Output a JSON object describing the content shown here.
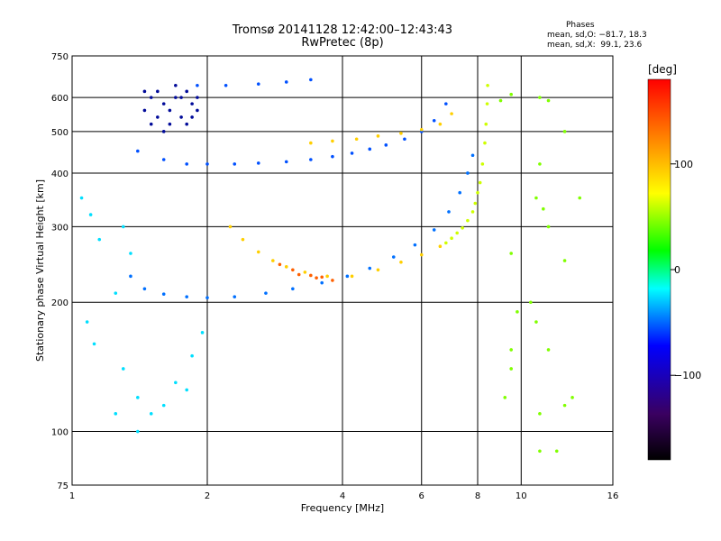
{
  "title": "Tromsø 20141128 12:42:00–12:43:43",
  "subtitle": "RwPretec (8p)",
  "stats": {
    "heading": "Phases",
    "o_line": "mean, sd,O: −81.7, 18.3",
    "x_line": "mean, sd,X:  99.1, 23.6"
  },
  "chart_data": {
    "type": "scatter",
    "xlabel": "Frequency [MHz]",
    "ylabel": "Stationary phase Virtual Height [km]",
    "xscale": "log",
    "yscale": "log",
    "xlim": [
      1,
      16
    ],
    "ylim": [
      75,
      750
    ],
    "x_ticks": [
      1,
      2,
      4,
      6,
      8,
      10,
      16
    ],
    "y_ticks": [
      75,
      100,
      200,
      300,
      400,
      500,
      600,
      750
    ],
    "colorbar": {
      "label": "[deg]",
      "range": [
        -180,
        180
      ],
      "ticks": [
        100,
        0,
        -100
      ]
    },
    "series": [
      {
        "points": [
          [
            1.45,
            560
          ],
          [
            1.5,
            600
          ],
          [
            1.55,
            620
          ],
          [
            1.6,
            580
          ],
          [
            1.65,
            560
          ],
          [
            1.7,
            600
          ],
          [
            1.75,
            540
          ],
          [
            1.8,
            520
          ],
          [
            1.85,
            580
          ],
          [
            1.9,
            560
          ],
          [
            1.5,
            520
          ],
          [
            1.6,
            500
          ],
          [
            1.7,
            640
          ],
          [
            1.8,
            620
          ],
          [
            1.55,
            540
          ],
          [
            1.65,
            520
          ],
          [
            1.75,
            600
          ],
          [
            1.85,
            540
          ],
          [
            1.45,
            620
          ],
          [
            1.9,
            600
          ]
        ],
        "phase": -135
      },
      {
        "points": [
          [
            1.4,
            450
          ],
          [
            1.6,
            430
          ],
          [
            1.8,
            420
          ],
          [
            2.0,
            420
          ],
          [
            2.3,
            420
          ],
          [
            2.6,
            422
          ],
          [
            3.0,
            425
          ],
          [
            3.4,
            430
          ],
          [
            3.8,
            437
          ],
          [
            4.2,
            445
          ],
          [
            4.6,
            455
          ],
          [
            5.0,
            465
          ],
          [
            5.5,
            480
          ],
          [
            6.0,
            500
          ],
          [
            6.4,
            530
          ],
          [
            6.8,
            580
          ],
          [
            1.9,
            640
          ],
          [
            2.2,
            640
          ],
          [
            2.6,
            645
          ],
          [
            3.0,
            652
          ],
          [
            3.4,
            660
          ]
        ],
        "phase": -115
      },
      {
        "points": [
          [
            1.35,
            230
          ],
          [
            1.45,
            215
          ],
          [
            1.6,
            209
          ],
          [
            1.8,
            206
          ],
          [
            2.0,
            205
          ],
          [
            2.3,
            206
          ],
          [
            2.7,
            210
          ],
          [
            3.1,
            215
          ],
          [
            3.6,
            222
          ],
          [
            4.1,
            230
          ],
          [
            4.6,
            240
          ],
          [
            5.2,
            255
          ],
          [
            5.8,
            272
          ],
          [
            6.4,
            295
          ],
          [
            6.9,
            325
          ],
          [
            7.3,
            360
          ],
          [
            7.6,
            400
          ],
          [
            7.8,
            440
          ]
        ],
        "phase": -105
      },
      {
        "points": [
          [
            1.05,
            350
          ],
          [
            1.1,
            320
          ],
          [
            1.15,
            280
          ],
          [
            1.3,
            300
          ],
          [
            1.35,
            260
          ],
          [
            1.25,
            210
          ],
          [
            1.08,
            180
          ],
          [
            1.12,
            160
          ],
          [
            1.3,
            140
          ],
          [
            1.4,
            120
          ],
          [
            1.5,
            110
          ],
          [
            1.7,
            130
          ],
          [
            1.85,
            150
          ],
          [
            1.95,
            170
          ],
          [
            1.25,
            110
          ],
          [
            1.4,
            100
          ],
          [
            1.6,
            115
          ],
          [
            1.8,
            125
          ]
        ],
        "phase": -70
      },
      {
        "points": [
          [
            2.25,
            300
          ],
          [
            2.4,
            280
          ],
          [
            2.6,
            262
          ],
          [
            2.8,
            250
          ],
          [
            3.0,
            242
          ],
          [
            3.3,
            235
          ],
          [
            3.7,
            230
          ],
          [
            4.2,
            230
          ],
          [
            4.8,
            238
          ],
          [
            5.4,
            248
          ],
          [
            6.0,
            258
          ],
          [
            6.6,
            270
          ],
          [
            4.3,
            480
          ],
          [
            4.8,
            488
          ],
          [
            5.4,
            495
          ],
          [
            6.0,
            505
          ],
          [
            6.6,
            520
          ],
          [
            7.0,
            550
          ],
          [
            3.4,
            470
          ],
          [
            3.8,
            475
          ]
        ],
        "phase": 115
      },
      {
        "points": [
          [
            3.2,
            232
          ],
          [
            3.5,
            228
          ],
          [
            3.8,
            225
          ],
          [
            2.9,
            245
          ],
          [
            3.1,
            238
          ],
          [
            3.4,
            231
          ],
          [
            3.6,
            229
          ]
        ],
        "phase": 150
      },
      {
        "points": [
          [
            6.8,
            275
          ],
          [
            7.2,
            290
          ],
          [
            7.6,
            310
          ],
          [
            7.9,
            340
          ],
          [
            8.1,
            380
          ],
          [
            8.2,
            420
          ],
          [
            8.3,
            470
          ],
          [
            8.35,
            520
          ],
          [
            8.4,
            580
          ],
          [
            8.42,
            640
          ],
          [
            7.0,
            282
          ],
          [
            7.4,
            298
          ],
          [
            7.8,
            325
          ],
          [
            8.0,
            360
          ]
        ],
        "phase": 85
      },
      {
        "points": [
          [
            9.0,
            590
          ],
          [
            9.5,
            610
          ],
          [
            11.0,
            600
          ],
          [
            11.5,
            590
          ],
          [
            12.5,
            500
          ],
          [
            11.0,
            420
          ],
          [
            11.2,
            330
          ],
          [
            10.8,
            350
          ],
          [
            11.5,
            300
          ],
          [
            10.8,
            180
          ],
          [
            9.8,
            190
          ],
          [
            9.5,
            155
          ],
          [
            9.5,
            140
          ],
          [
            9.2,
            120
          ],
          [
            11.0,
            110
          ],
          [
            11.5,
            155
          ],
          [
            10.5,
            200
          ],
          [
            11.0,
            90
          ],
          [
            12.0,
            90
          ],
          [
            12.5,
            115
          ],
          [
            13.0,
            120
          ],
          [
            12.5,
            250
          ],
          [
            13.5,
            350
          ],
          [
            9.5,
            260
          ]
        ],
        "phase": 60
      }
    ]
  }
}
